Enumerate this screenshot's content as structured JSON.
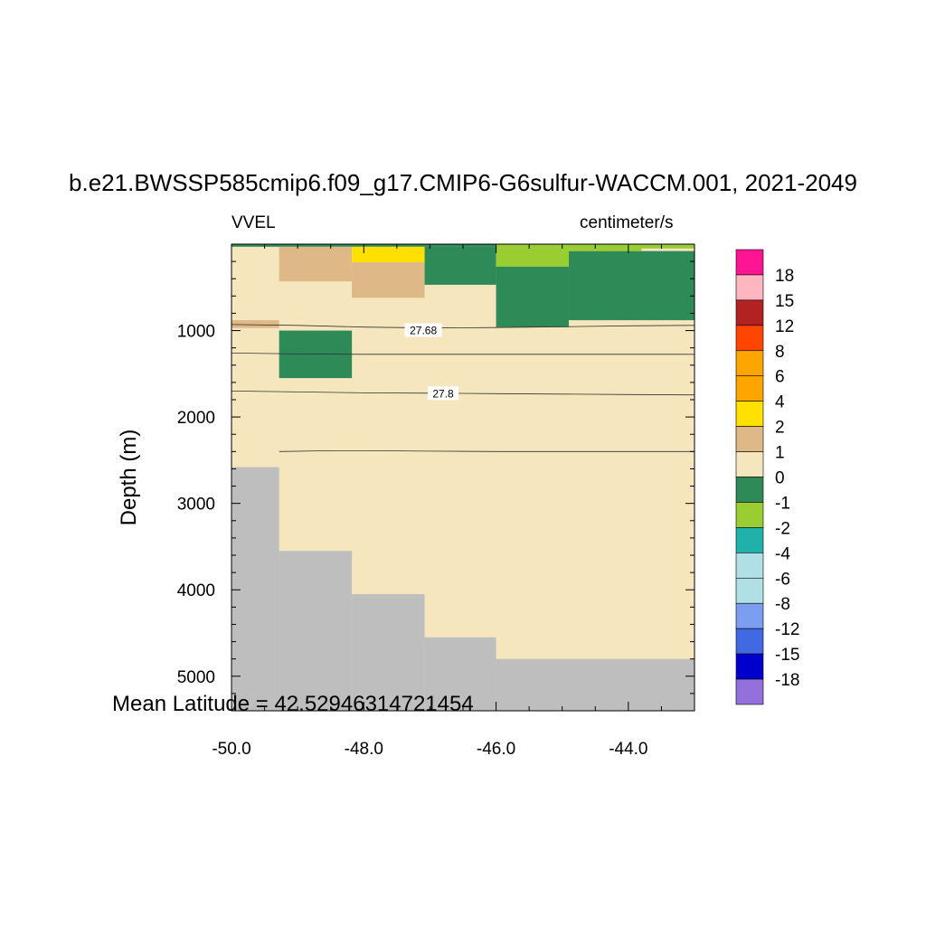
{
  "chart_data": {
    "type": "heatmap",
    "title": "b.e21.BWSSP585cmip6.f09_g17.CMIP6-G6sulfur-WACCM.001, 2021-2049",
    "left_string": "VVEL",
    "right_string": "centimeter/s",
    "xlabel": "",
    "ylabel": "Depth (m)",
    "annotation": "Mean Latitude = 42.52946314721454",
    "xlim": [
      -50.0,
      -43.0
    ],
    "ylim": [
      5400,
      0
    ],
    "x_ticks": [
      -50.0,
      -48.0,
      -46.0,
      -44.0
    ],
    "x_tick_labels": [
      "-50.0",
      "-48.0",
      "-46.0",
      "-44.0"
    ],
    "y_ticks": [
      1000,
      2000,
      3000,
      4000,
      5000
    ],
    "y_tick_labels": [
      "1000",
      "2000",
      "3000",
      "4000",
      "5000"
    ],
    "colorbar": {
      "labels": [
        "18",
        "15",
        "12",
        "8",
        "6",
        "4",
        "2",
        "1",
        "0",
        "-1",
        "-2",
        "-4",
        "-6",
        "-8",
        "-12",
        "-15",
        "-18"
      ],
      "colors": [
        "#FF1493",
        "#FFB6C1",
        "#B22222",
        "#FF4500",
        "#FFA500",
        "#FFA500",
        "#FFE000",
        "#DEB887",
        "#F5E6BE",
        "#2E8B57",
        "#9ACD32",
        "#20B2AA",
        "#B0E0E6",
        "#B0E0E6",
        "#7B9EF0",
        "#4169E1",
        "#0000CD",
        "#9370DB"
      ]
    },
    "background_color": "#F5E6BE",
    "land_color": "#BEBEBE",
    "cells": [
      {
        "x0": -50.0,
        "x1": -43.0,
        "y0": 0,
        "y1": 30,
        "color": "#2E8B57"
      },
      {
        "x0": -49.28,
        "x1": -48.18,
        "y0": 30,
        "y1": 430,
        "color": "#DEB887"
      },
      {
        "x0": -48.18,
        "x1": -47.08,
        "y0": 30,
        "y1": 210,
        "color": "#FFE000"
      },
      {
        "x0": -48.18,
        "x1": -47.08,
        "y0": 210,
        "y1": 620,
        "color": "#DEB887"
      },
      {
        "x0": -47.08,
        "x1": -46.0,
        "y0": 30,
        "y1": 470,
        "color": "#2E8B57"
      },
      {
        "x0": -46.0,
        "x1": -43.0,
        "y0": 0,
        "y1": 30,
        "color": "#9ACD32"
      },
      {
        "x0": -46.0,
        "x1": -44.9,
        "y0": 30,
        "y1": 260,
        "color": "#9ACD32"
      },
      {
        "x0": -46.0,
        "x1": -44.9,
        "y0": 260,
        "y1": 960,
        "color": "#2E8B57"
      },
      {
        "x0": -44.9,
        "x1": -43.0,
        "y0": 80,
        "y1": 880,
        "color": "#2E8B57"
      },
      {
        "x0": -44.9,
        "x1": -43.8,
        "y0": 30,
        "y1": 80,
        "color": "#9ACD32"
      },
      {
        "x0": -43.8,
        "x1": -43.0,
        "y0": 30,
        "y1": 50,
        "color": "#9ACD32"
      },
      {
        "x0": -50.0,
        "x1": -49.28,
        "y0": 880,
        "y1": 970,
        "color": "#DEB887"
      },
      {
        "x0": -49.28,
        "x1": -48.18,
        "y0": 1000,
        "y1": 1550,
        "color": "#2E8B57"
      }
    ],
    "land": [
      {
        "x0": -50.0,
        "x1": -49.28,
        "y0": 2580,
        "y1": 5400
      },
      {
        "x0": -49.28,
        "x1": -48.18,
        "y0": 3550,
        "y1": 5400
      },
      {
        "x0": -48.18,
        "x1": -47.08,
        "y0": 4050,
        "y1": 5400
      },
      {
        "x0": -47.08,
        "x1": -46.0,
        "y0": 4550,
        "y1": 5400
      },
      {
        "x0": -46.0,
        "x1": -43.0,
        "y0": 4800,
        "y1": 5400
      }
    ],
    "contours": [
      {
        "label": "27.68",
        "label_at": [
          -47.1,
          1000
        ],
        "points": [
          [
            -50.0,
            930
          ],
          [
            -49.0,
            940
          ],
          [
            -48.0,
            960
          ],
          [
            -47.0,
            970
          ],
          [
            -46.0,
            965
          ],
          [
            -45.0,
            955
          ],
          [
            -44.0,
            945
          ],
          [
            -43.0,
            940
          ]
        ]
      },
      {
        "label": "",
        "points": [
          [
            -50.0,
            1260
          ],
          [
            -49.0,
            1270
          ],
          [
            -48.0,
            1275
          ],
          [
            -47.0,
            1275
          ],
          [
            -46.0,
            1275
          ],
          [
            -45.0,
            1275
          ],
          [
            -44.0,
            1275
          ],
          [
            -43.0,
            1275
          ]
        ]
      },
      {
        "label": "27.8",
        "label_at": [
          -46.8,
          1730
        ],
        "points": [
          [
            -50.0,
            1700
          ],
          [
            -49.0,
            1710
          ],
          [
            -48.0,
            1720
          ],
          [
            -47.0,
            1725
          ],
          [
            -46.0,
            1730
          ],
          [
            -45.0,
            1735
          ],
          [
            -44.0,
            1740
          ],
          [
            -43.0,
            1745
          ]
        ]
      },
      {
        "label": "",
        "points": [
          [
            -49.28,
            2400
          ],
          [
            -48.5,
            2390
          ],
          [
            -48.0,
            2390
          ],
          [
            -47.0,
            2395
          ],
          [
            -46.0,
            2400
          ],
          [
            -45.0,
            2400
          ],
          [
            -44.0,
            2400
          ],
          [
            -43.0,
            2400
          ]
        ]
      }
    ]
  }
}
